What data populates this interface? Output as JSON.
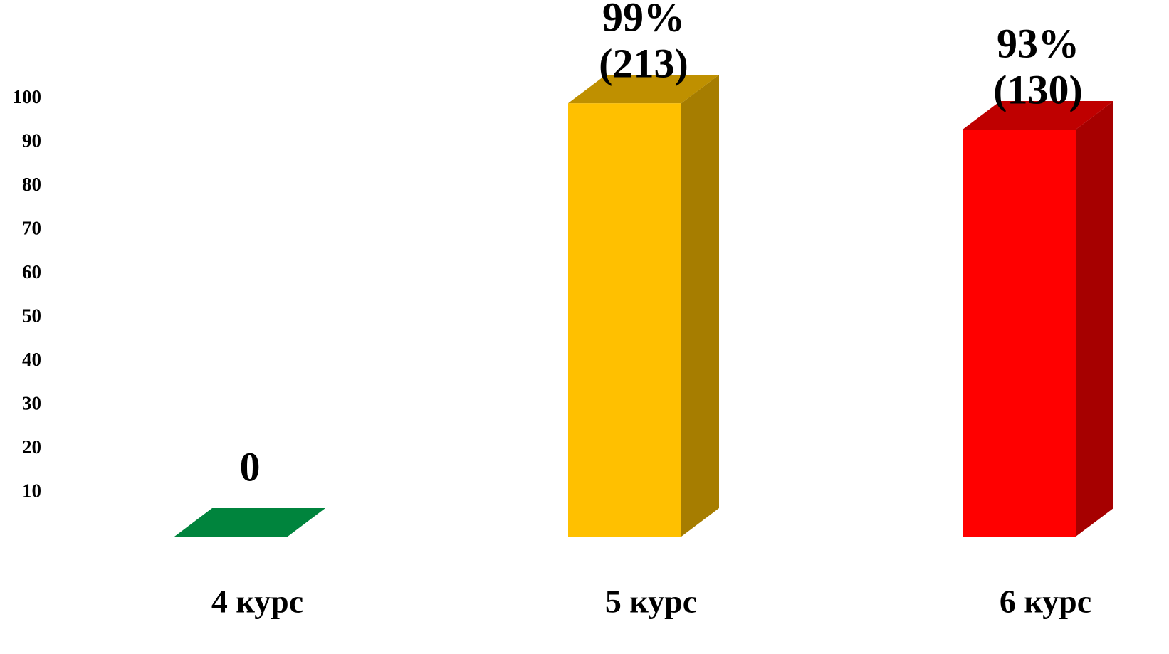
{
  "chart_data": {
    "type": "bar3d",
    "categories": [
      "4 курс",
      "5 курс",
      "6 курс"
    ],
    "values": [
      0,
      99,
      93
    ],
    "value_labels": [
      "0",
      "99%",
      "93%"
    ],
    "count_labels": [
      null,
      "(213)",
      "(130)"
    ],
    "colors": [
      "#00843d",
      "#ffc000",
      "#ff0000"
    ],
    "ylim": [
      0,
      100
    ],
    "yticks": [
      10,
      20,
      30,
      40,
      50,
      60,
      70,
      80,
      90,
      100
    ]
  }
}
